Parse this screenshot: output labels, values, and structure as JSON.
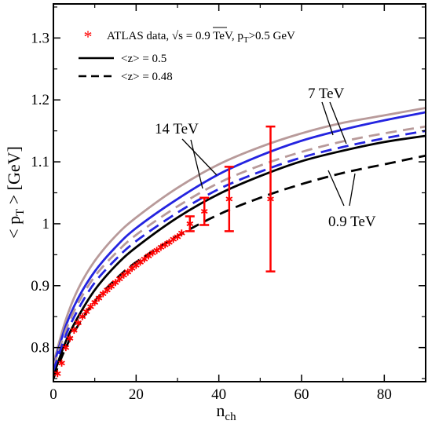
{
  "chart_data": {
    "type": "line",
    "title": "",
    "xlabel": "n",
    "xlabel_sub": "ch",
    "ylabel_parts": {
      "pre": "< p",
      "sub": "T",
      "post": " > [GeV]"
    },
    "xlim": [
      0,
      90
    ],
    "ylim": [
      0.745,
      1.355
    ],
    "xticks": [
      0,
      20,
      40,
      60,
      80
    ],
    "xtick_labels": [
      "0",
      "20",
      "40",
      "60",
      "80"
    ],
    "yticks": [
      0.8,
      0.9,
      1.0,
      1.1,
      1.2,
      1.3
    ],
    "ytick_labels": [
      "0.8",
      "0.9",
      "1",
      "1.1",
      "1.2",
      "1.3"
    ],
    "grid": false,
    "legend_position": "top-left",
    "legend": {
      "data_label_parts": {
        "a": "ATLAS data, ",
        "sqrt": "√s",
        "b": " = 0.9 TeV, p",
        "sub": "T",
        "c": ">0.5 GeV"
      },
      "solid_label": "<z> = 0.5",
      "dashed_label": "<z> = 0.48"
    },
    "annotations": {
      "e14": "14 TeV",
      "e7": "7 TeV",
      "e09": "0.9 TeV"
    },
    "colors": {
      "e14": "#b89a9a",
      "e7": "#2424e0",
      "e09": "#000000",
      "data": "#ff0000"
    },
    "series": [
      {
        "energy": "14 TeV",
        "style": "solid",
        "x": [
          0,
          3,
          6,
          10,
          15,
          20,
          30,
          40,
          50,
          60,
          70,
          80,
          90
        ],
        "y": [
          0.775,
          0.845,
          0.895,
          0.94,
          0.98,
          1.01,
          1.058,
          1.096,
          1.124,
          1.146,
          1.163,
          1.175,
          1.187
        ]
      },
      {
        "energy": "7 TeV",
        "style": "solid",
        "x": [
          0,
          3,
          6,
          10,
          15,
          20,
          30,
          40,
          50,
          60,
          70,
          80,
          90
        ],
        "y": [
          0.77,
          0.835,
          0.88,
          0.923,
          0.962,
          0.993,
          1.04,
          1.08,
          1.11,
          1.134,
          1.152,
          1.167,
          1.18
        ]
      },
      {
        "energy": "0.9 TeV",
        "style": "solid",
        "x": [
          0,
          3,
          6,
          10,
          15,
          20,
          30,
          40,
          50,
          60,
          70,
          80,
          90
        ],
        "y": [
          0.755,
          0.81,
          0.85,
          0.893,
          0.932,
          0.962,
          1.01,
          1.048,
          1.077,
          1.101,
          1.118,
          1.132,
          1.142
        ]
      },
      {
        "energy": "14 TeV",
        "style": "dashed",
        "x": [
          0,
          3,
          6,
          10,
          15,
          20,
          30,
          40,
          50,
          60,
          70,
          80,
          90
        ],
        "y": [
          0.768,
          0.828,
          0.872,
          0.915,
          0.952,
          0.982,
          1.028,
          1.066,
          1.094,
          1.116,
          1.133,
          1.146,
          1.157
        ]
      },
      {
        "energy": "7 TeV",
        "style": "dashed",
        "x": [
          0,
          3,
          6,
          10,
          15,
          20,
          30,
          40,
          50,
          60,
          70,
          80,
          90
        ],
        "y": [
          0.763,
          0.82,
          0.862,
          0.905,
          0.942,
          0.972,
          1.018,
          1.056,
          1.084,
          1.107,
          1.124,
          1.138,
          1.15
        ]
      },
      {
        "energy": "0.9 TeV",
        "style": "dashed",
        "x": [
          0,
          3,
          6,
          10,
          15,
          20,
          30,
          40,
          50,
          60,
          70,
          80,
          90
        ],
        "y": [
          0.75,
          0.8,
          0.836,
          0.875,
          0.91,
          0.938,
          0.98,
          1.015,
          1.042,
          1.064,
          1.082,
          1.096,
          1.11
        ]
      }
    ],
    "data_points": [
      {
        "x": 1,
        "y": 0.758
      },
      {
        "x": 2,
        "y": 0.775
      },
      {
        "x": 3,
        "y": 0.8
      },
      {
        "x": 4,
        "y": 0.815
      },
      {
        "x": 5,
        "y": 0.828
      },
      {
        "x": 6,
        "y": 0.84
      },
      {
        "x": 7,
        "y": 0.85
      },
      {
        "x": 8,
        "y": 0.858
      },
      {
        "x": 9,
        "y": 0.866
      },
      {
        "x": 10,
        "y": 0.873
      },
      {
        "x": 11,
        "y": 0.88
      },
      {
        "x": 12,
        "y": 0.887
      },
      {
        "x": 13,
        "y": 0.893
      },
      {
        "x": 14,
        "y": 0.899
      },
      {
        "x": 15,
        "y": 0.905
      },
      {
        "x": 16,
        "y": 0.911
      },
      {
        "x": 17,
        "y": 0.917
      },
      {
        "x": 18,
        "y": 0.922
      },
      {
        "x": 19,
        "y": 0.928
      },
      {
        "x": 20,
        "y": 0.933
      },
      {
        "x": 21,
        "y": 0.938
      },
      {
        "x": 22,
        "y": 0.943
      },
      {
        "x": 23,
        "y": 0.948
      },
      {
        "x": 24,
        "y": 0.953
      },
      {
        "x": 25,
        "y": 0.957
      },
      {
        "x": 26,
        "y": 0.962
      },
      {
        "x": 27,
        "y": 0.966
      },
      {
        "x": 28,
        "y": 0.97
      },
      {
        "x": 29,
        "y": 0.975
      },
      {
        "x": 30,
        "y": 0.979
      },
      {
        "x": 31,
        "y": 0.985
      },
      {
        "x": 33,
        "y": 1.0,
        "err": 0.012
      },
      {
        "x": 36.5,
        "y": 1.02,
        "err": 0.022
      },
      {
        "x": 42.5,
        "y": 1.04,
        "err": 0.052
      },
      {
        "x": 52.5,
        "y": 1.04,
        "err": 0.117
      }
    ]
  }
}
